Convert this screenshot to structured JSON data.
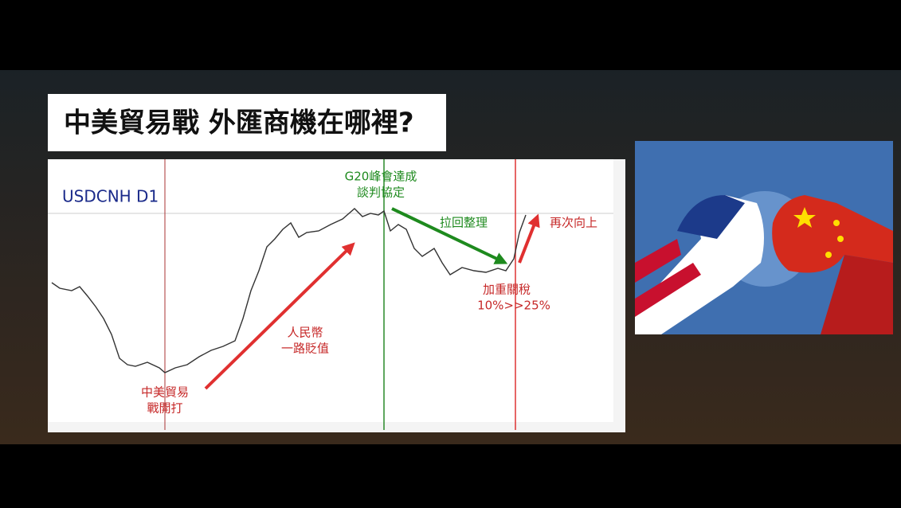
{
  "title": "中美貿易戰 外匯商機在哪裡?",
  "chart": {
    "symbol": "USDCNH  D1",
    "annotations": [
      {
        "lines": [
          "G20峰會達成",
          "談判協定"
        ],
        "color": "green"
      },
      {
        "lines": [
          "拉回整理"
        ],
        "color": "red"
      },
      {
        "lines": [
          "再次向上"
        ],
        "color": "red"
      },
      {
        "lines": [
          "人民幣",
          "一路貶值"
        ],
        "color": "red"
      },
      {
        "lines": [
          "中美貿易",
          "戰開打"
        ],
        "color": "red"
      },
      {
        "lines": [
          "加重關稅",
          "10%>>25%"
        ],
        "color": "red"
      }
    ]
  }
}
